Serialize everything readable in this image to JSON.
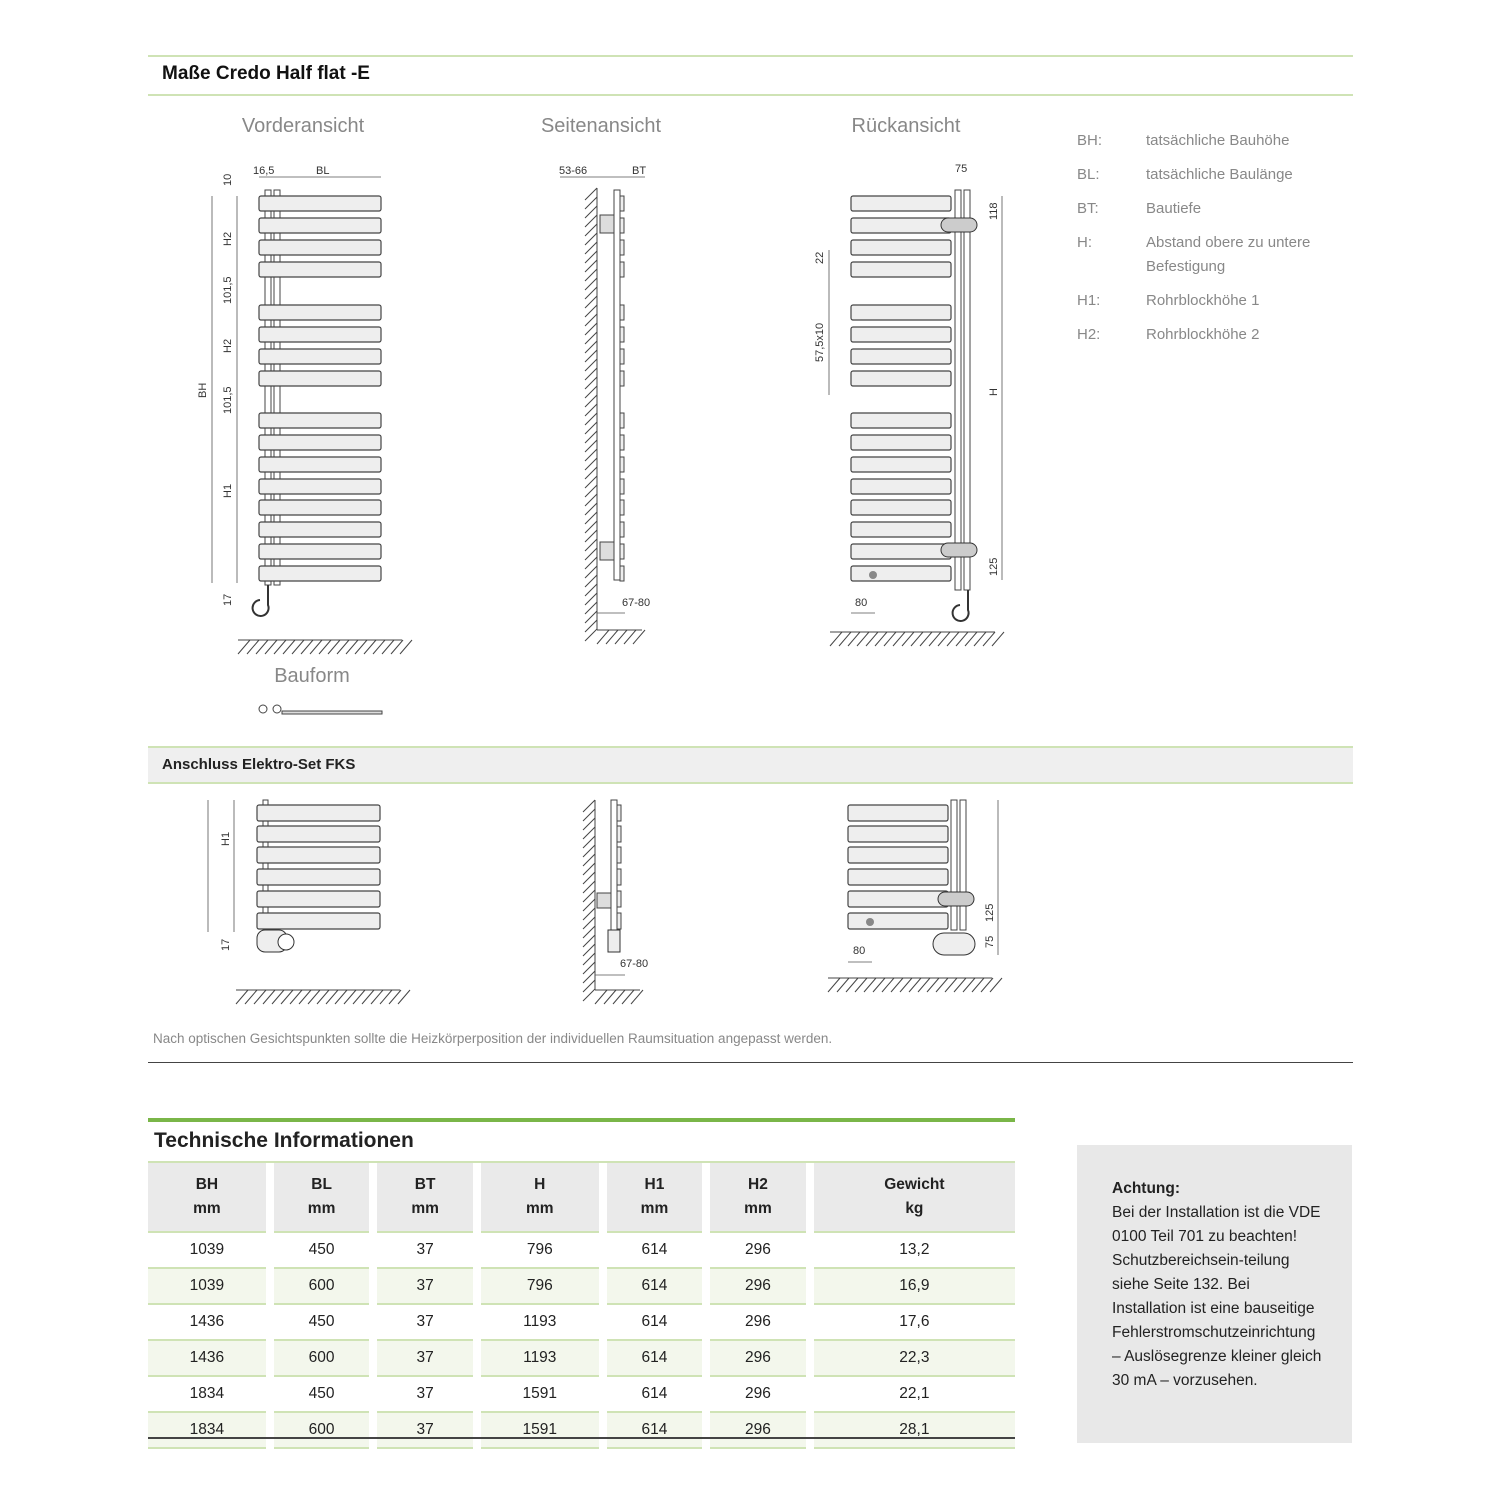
{
  "section1": {
    "title": "Maße Credo Half flat -E"
  },
  "views": {
    "front": "Vorderansicht",
    "side": "Seitenansicht",
    "back": "Rückansicht",
    "bauform": "Bauform"
  },
  "dims": {
    "front": {
      "top_offset": "10",
      "pipe": "16,5",
      "bl": "BL",
      "bh": "BH",
      "h2a": "H2",
      "gap1": "101,5",
      "h2b": "H2",
      "gap2": "101,5",
      "h1": "H1",
      "bottom": "17"
    },
    "side": {
      "wall": "53-66",
      "bt": "BT",
      "bottom": "67-80"
    },
    "back": {
      "width": "75",
      "top": "118",
      "bar": "22",
      "spacing": "57,5x10",
      "h": "H",
      "bottom": "125",
      "offset": "80"
    }
  },
  "legend": [
    {
      "key": "BH:",
      "value": "tatsächliche Bauhöhe"
    },
    {
      "key": "BL:",
      "value": "tatsächliche Baulänge"
    },
    {
      "key": "BT:",
      "value": "Bautiefe"
    },
    {
      "key": "H:",
      "value": "Abstand obere zu untere Befestigung"
    },
    {
      "key": "H1:",
      "value": "Rohrblockhöhe 1"
    },
    {
      "key": "H2:",
      "value": "Rohrblockhöhe 2"
    }
  ],
  "section2": {
    "title": "Anschluss Elektro-Set FKS",
    "dims": {
      "h1": "H1",
      "bottom": "17",
      "side_bottom": "67-80",
      "back_offset": "80",
      "back_a": "125",
      "back_b": "75"
    }
  },
  "note": "Nach optischen Gesichtspunkten sollte die Heizkörperposition der individuellen Raumsituation angepasst werden.",
  "tech": {
    "title": "Technische Informationen",
    "headers": [
      [
        "BH",
        "mm"
      ],
      [
        "BL",
        "mm"
      ],
      [
        "BT",
        "mm"
      ],
      [
        "H",
        "mm"
      ],
      [
        "H1",
        "mm"
      ],
      [
        "H2",
        "mm"
      ],
      [
        "Gewicht",
        "kg"
      ]
    ],
    "rows": [
      [
        "1039",
        "450",
        "37",
        "796",
        "614",
        "296",
        "13,2"
      ],
      [
        "1039",
        "600",
        "37",
        "796",
        "614",
        "296",
        "16,9"
      ],
      [
        "1436",
        "450",
        "37",
        "1193",
        "614",
        "296",
        "17,6"
      ],
      [
        "1436",
        "600",
        "37",
        "1193",
        "614",
        "296",
        "22,3"
      ],
      [
        "1834",
        "450",
        "37",
        "1591",
        "614",
        "296",
        "22,1"
      ],
      [
        "1834",
        "600",
        "37",
        "1591",
        "614",
        "296",
        "28,1"
      ]
    ]
  },
  "warning": {
    "title": "Achtung:",
    "text": "Bei der Installation ist die VDE 0100 Teil 701 zu beachten! Schutzbereichsein-teilung siehe Seite 132. Bei Installation ist eine bauseitige Fehlerstromschutzeinrichtung – Auslösegrenze kleiner gleich 30 mA – vorzusehen."
  },
  "colors": {
    "accent": "#7ab648",
    "line": "#cfe3b5",
    "grey": "#e8e8e8"
  }
}
